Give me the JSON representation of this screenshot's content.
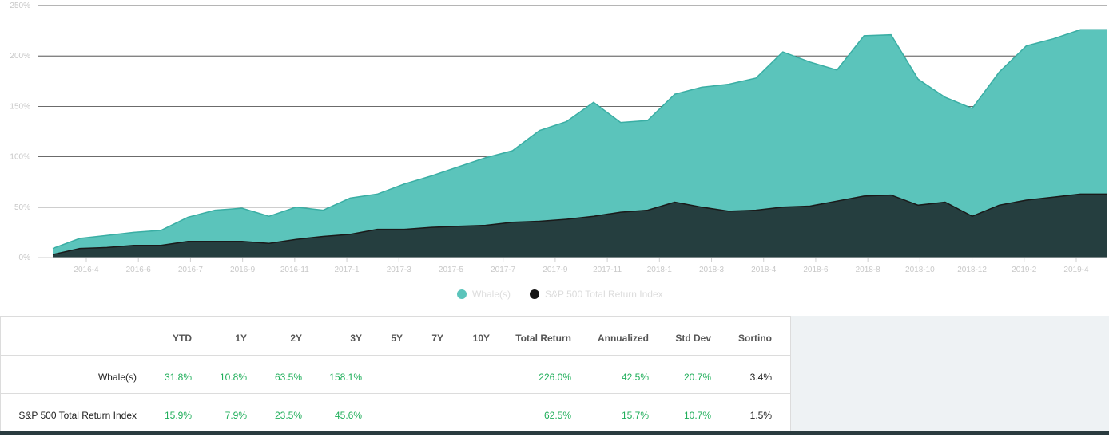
{
  "chart_data": {
    "type": "area",
    "x_ticks": [
      "2016-4",
      "2016-6",
      "2016-7",
      "2016-9",
      "2016-11",
      "2017-1",
      "2017-3",
      "2017-5",
      "2017-7",
      "2017-9",
      "2017-11",
      "2018-1",
      "2018-3",
      "2018-4",
      "2018-6",
      "2018-8",
      "2018-10",
      "2018-12",
      "2019-2",
      "2019-4"
    ],
    "y_ticks": [
      "0%",
      "50%",
      "100%",
      "150%",
      "200%",
      "250%"
    ],
    "ylim": [
      0,
      250
    ],
    "grid": true,
    "legend_position": "bottom-center",
    "series": [
      {
        "name": "Whale(s)",
        "color": "#5bc4bb",
        "line_color": "#3aaea4",
        "values": [
          9,
          19,
          22,
          25,
          27,
          40,
          47,
          49,
          41,
          50,
          47,
          59,
          63,
          73,
          81,
          90,
          99,
          106,
          126,
          135,
          154,
          134,
          136,
          162,
          169,
          172,
          178,
          204,
          194,
          186,
          220,
          221,
          177,
          159,
          148,
          184,
          210,
          217,
          226,
          226
        ]
      },
      {
        "name": "S&P 500 Total Return Index",
        "color": "#253e3f",
        "line_color": "#1a1a1a",
        "values": [
          3,
          9,
          10,
          12,
          12,
          16,
          16,
          16,
          14,
          18,
          21,
          23,
          28,
          28,
          30,
          31,
          32,
          35,
          36,
          38,
          41,
          45,
          47,
          55,
          50,
          46,
          47,
          50,
          51,
          56,
          61,
          62,
          52,
          55,
          41,
          52,
          57,
          60,
          63,
          63
        ]
      }
    ]
  },
  "stats": {
    "headers": [
      "YTD",
      "1Y",
      "2Y",
      "3Y",
      "5Y",
      "7Y",
      "10Y",
      "Total Return",
      "Annualized",
      "Std Dev",
      "Sortino"
    ],
    "rows": [
      {
        "name": "Whale(s)",
        "values": [
          "31.8%",
          "10.8%",
          "63.5%",
          "158.1%",
          "",
          "",
          "",
          "226.0%",
          "42.5%",
          "20.7%",
          "3.4%"
        ]
      },
      {
        "name": "S&P 500 Total Return Index",
        "values": [
          "15.9%",
          "7.9%",
          "23.5%",
          "45.6%",
          "",
          "",
          "",
          "62.5%",
          "15.7%",
          "10.7%",
          "1.5%"
        ]
      }
    ]
  }
}
